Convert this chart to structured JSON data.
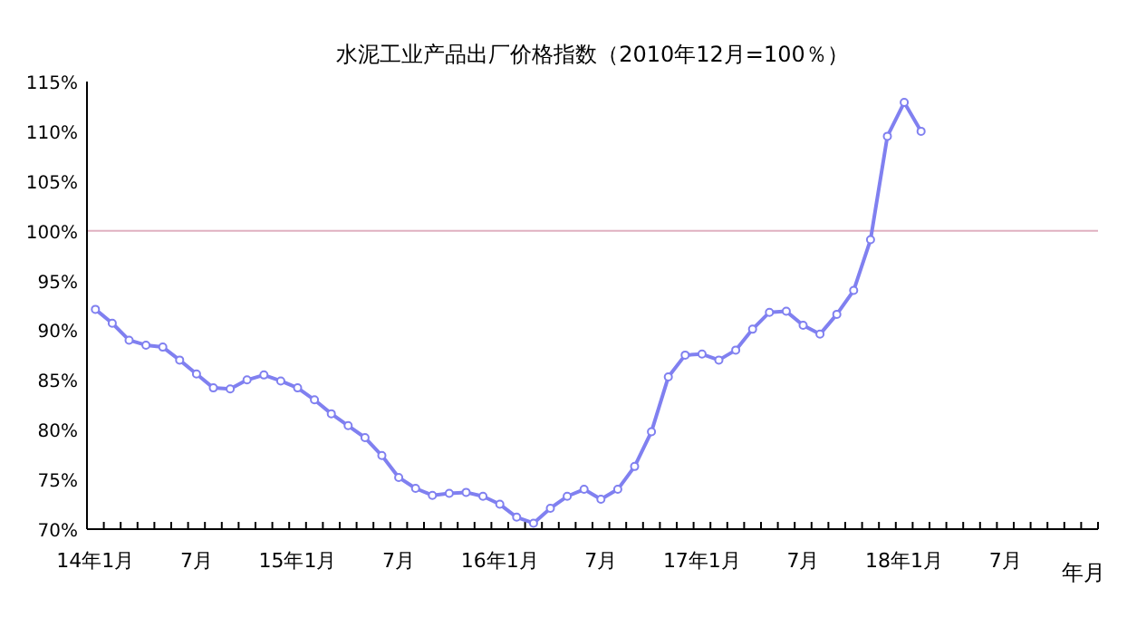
{
  "chart_data": {
    "type": "line",
    "title": "水泥工业产品出厂价格指数（2010年12月=100％）",
    "xlabel": "年月",
    "categories": [
      "14年1月",
      null,
      null,
      null,
      null,
      null,
      "7月",
      null,
      null,
      null,
      null,
      null,
      "15年1月",
      null,
      null,
      null,
      null,
      null,
      "7月",
      null,
      null,
      null,
      null,
      null,
      "16年1月",
      null,
      null,
      null,
      null,
      null,
      "7月",
      null,
      null,
      null,
      null,
      null,
      "17年1月",
      null,
      null,
      null,
      null,
      null,
      "7月",
      null,
      null,
      null,
      null,
      null,
      "18年1月",
      null,
      null,
      null,
      null,
      null,
      "7月",
      null,
      null,
      null,
      null,
      null
    ],
    "values": [
      92.1,
      90.7,
      89.0,
      88.5,
      88.3,
      87.0,
      85.6,
      84.2,
      84.1,
      85.0,
      85.5,
      84.9,
      84.2,
      83.0,
      81.6,
      80.4,
      79.2,
      77.4,
      75.2,
      74.1,
      73.4,
      73.6,
      73.7,
      73.3,
      72.5,
      71.2,
      70.6,
      72.1,
      73.3,
      74.0,
      73.0,
      74.0,
      76.3,
      79.8,
      85.3,
      87.5,
      87.6,
      87.0,
      88.0,
      90.1,
      91.8,
      91.9,
      90.5,
      89.6,
      91.6,
      94.0,
      99.1,
      109.5,
      112.9,
      110.0,
      null,
      null,
      null,
      null,
      null,
      null,
      null,
      null,
      null,
      null
    ],
    "color": "#8080f0",
    "marker": "circle",
    "ylim": [
      70,
      115
    ],
    "yticks": [
      {
        "value": 70,
        "label": "70%"
      },
      {
        "value": 75,
        "label": "75%"
      },
      {
        "value": 80,
        "label": "80%"
      },
      {
        "value": 85,
        "label": "85%"
      },
      {
        "value": 90,
        "label": "90%"
      },
      {
        "value": 95,
        "label": "95%"
      },
      {
        "value": 100,
        "label": "100%"
      },
      {
        "value": 105,
        "label": "105%"
      },
      {
        "value": 110,
        "label": "110%"
      },
      {
        "value": 115,
        "label": "115%"
      }
    ],
    "ref_lines": [
      {
        "axis": "y",
        "value": 100,
        "color": "#e0b0c0"
      }
    ]
  }
}
